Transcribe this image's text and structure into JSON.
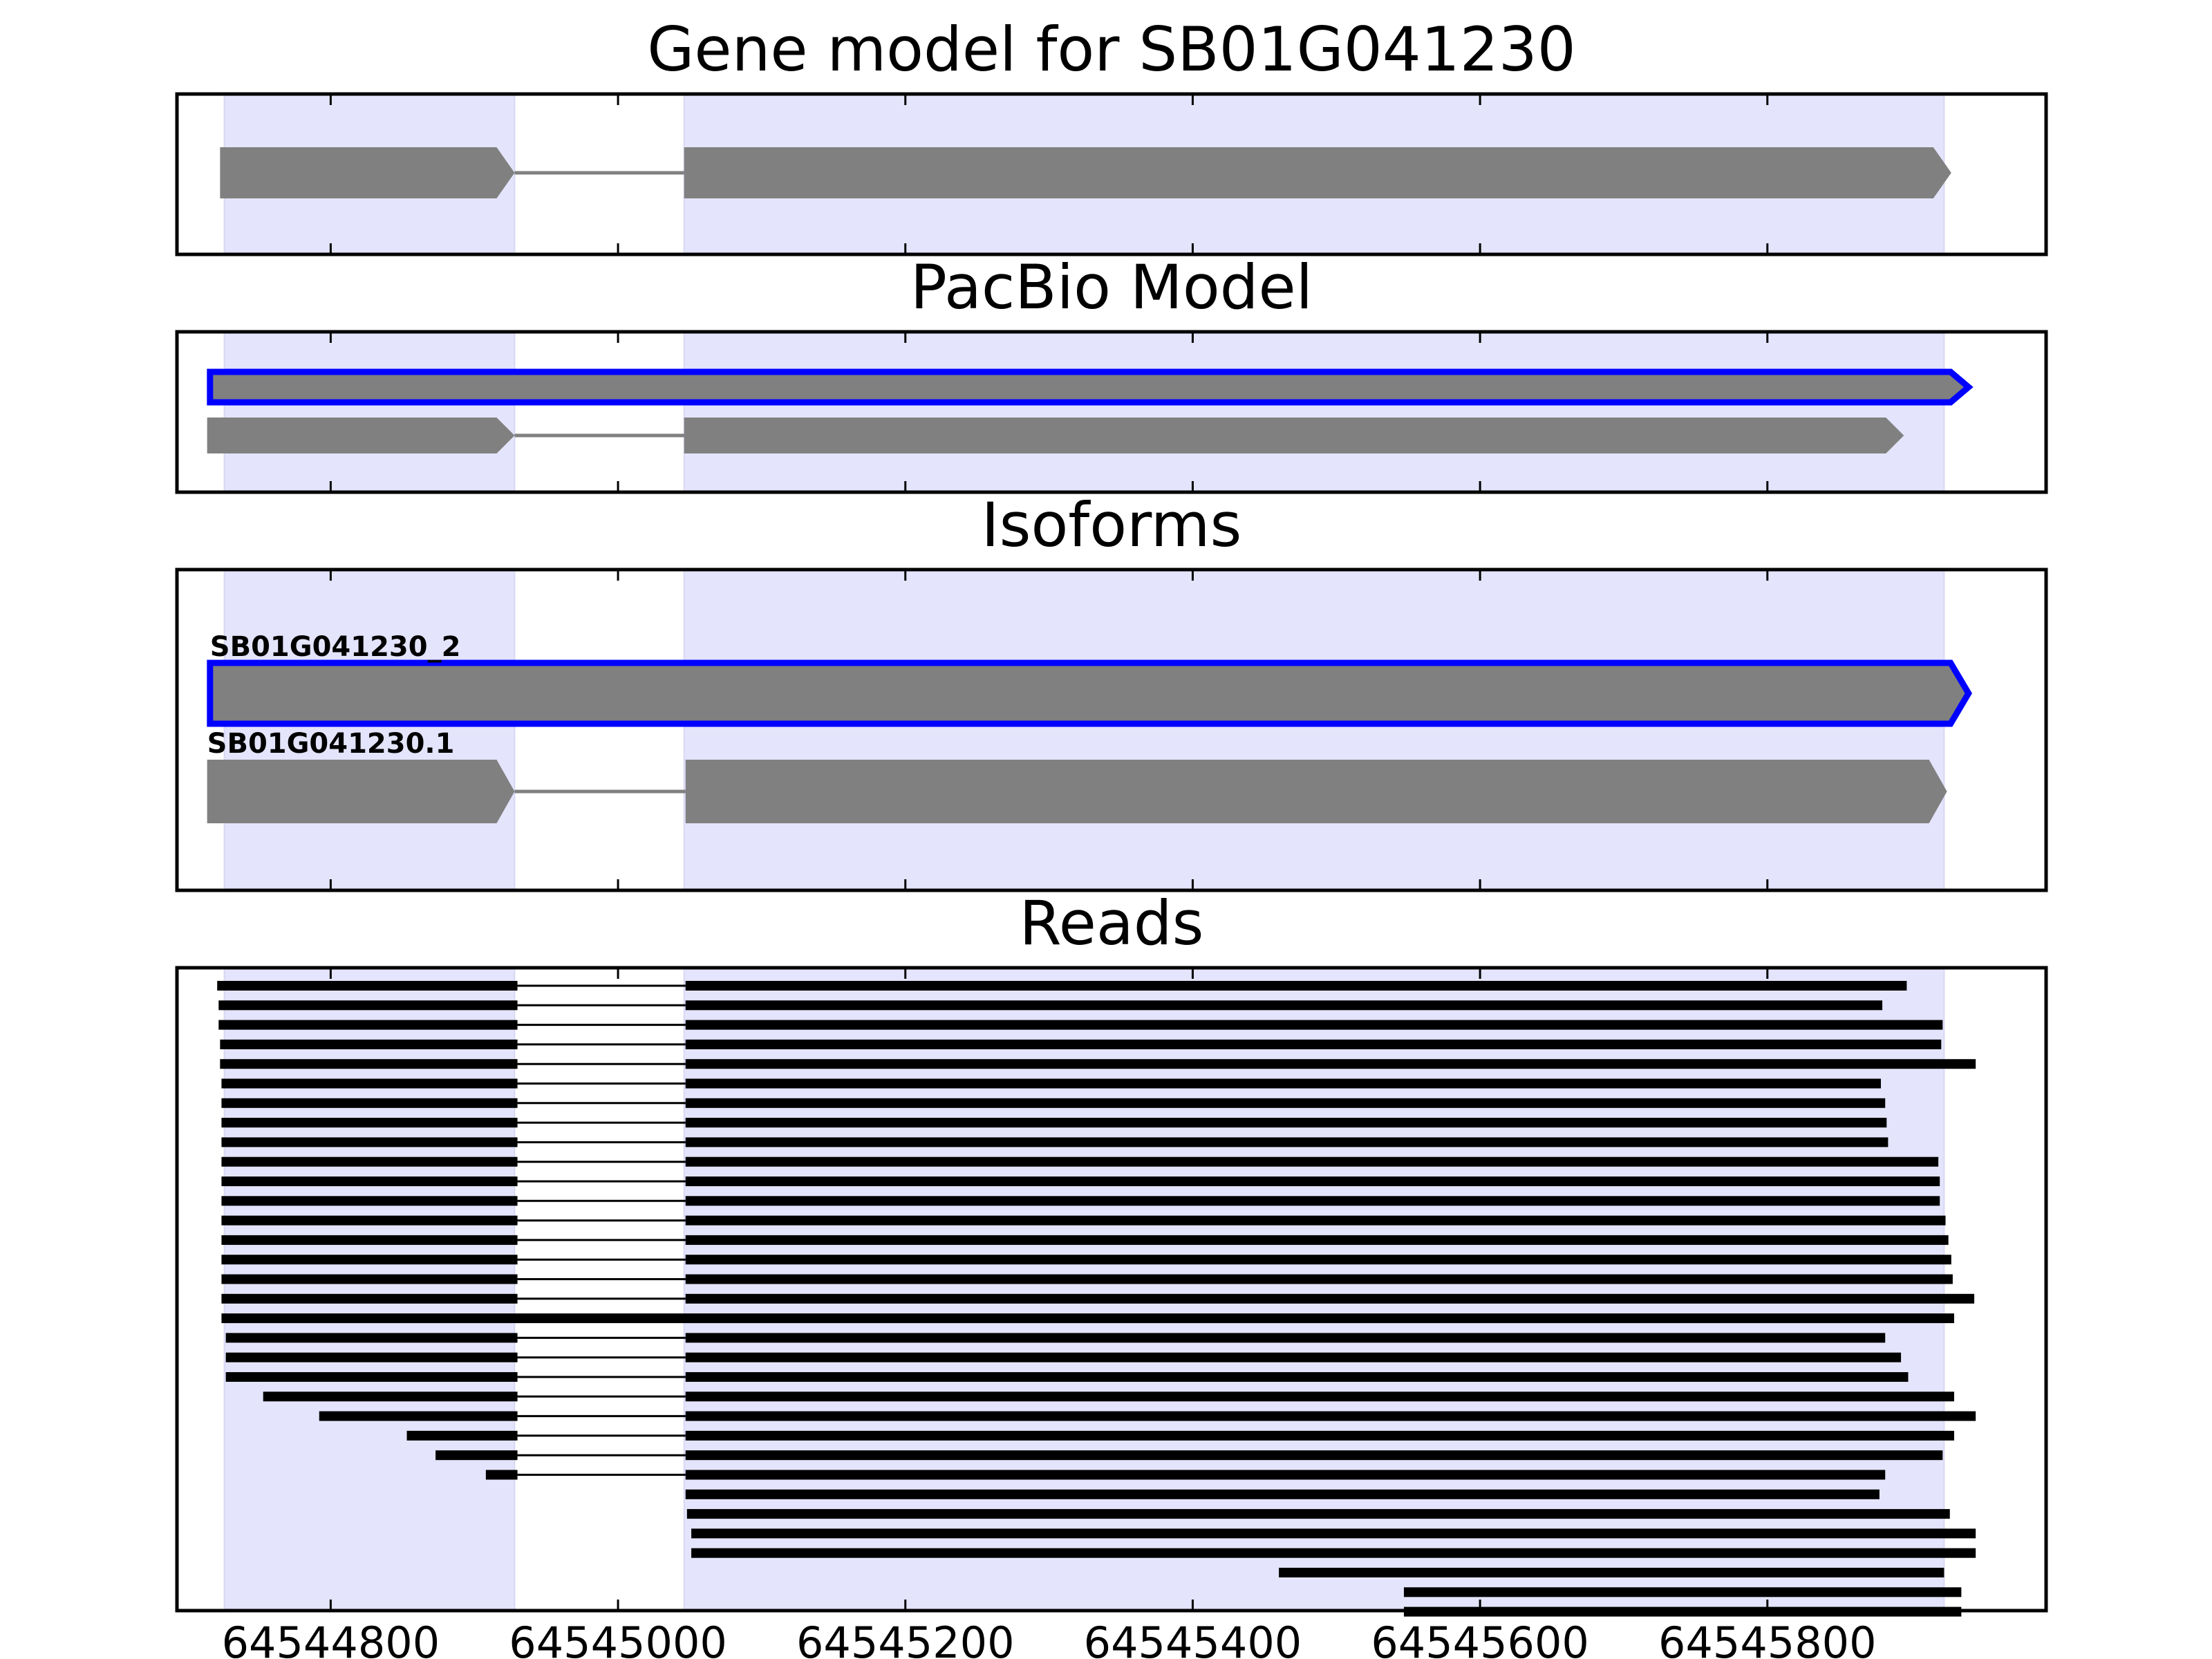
{
  "chart_data": {
    "type": "gene-model-tracks",
    "x_axis": {
      "xlim": [
        64544693,
        64545994
      ],
      "ticks": [
        64544800,
        64545000,
        64545200,
        64545400,
        64545600,
        64545800
      ],
      "tick_labels": [
        "64544800",
        "64545000",
        "64545200",
        "64545400",
        "64545600",
        "64545800"
      ]
    },
    "highlight_regions": [
      [
        64544726,
        64544928
      ],
      [
        64545046,
        64545923
      ]
    ],
    "colors": {
      "highlight": "#e4e4fc",
      "feature_gray": "#808080",
      "selected_outline": "#0000ff",
      "read": "#000000",
      "intron_line": "#808080"
    },
    "panels": [
      {
        "title": "Gene model for SB01G041230",
        "type": "gene",
        "features": [
          {
            "label": "",
            "selected": false,
            "exons": [
              [
                64544723,
                64544928
              ],
              [
                64545046,
                64545928
              ]
            ]
          }
        ]
      },
      {
        "title": "PacBio Model",
        "type": "gene",
        "features": [
          {
            "label": "",
            "selected": true,
            "exons": [
              [
                64544716,
                64545940
              ]
            ]
          },
          {
            "label": "",
            "selected": false,
            "exons": [
              [
                64544714,
                64544928
              ],
              [
                64545046,
                64545895
              ]
            ]
          }
        ]
      },
      {
        "title": "Isoforms",
        "type": "gene",
        "features": [
          {
            "label": "SB01G041230_2",
            "selected": true,
            "exons": [
              [
                64544716,
                64545940
              ]
            ]
          },
          {
            "label": "SB01G041230.1",
            "selected": false,
            "exons": [
              [
                64544714,
                64544928
              ],
              [
                64545047,
                64545925
              ]
            ]
          }
        ]
      },
      {
        "title": "Reads",
        "type": "reads",
        "reads": [
          [
            [
              64544721,
              64544930
            ],
            [
              64545047,
              64545897
            ]
          ],
          [
            [
              64544722,
              64544930
            ],
            [
              64545047,
              64545880
            ]
          ],
          [
            [
              64544722,
              64544930
            ],
            [
              64545047,
              64545922
            ]
          ],
          [
            [
              64544723,
              64544930
            ],
            [
              64545047,
              64545921
            ]
          ],
          [
            [
              64544723,
              64544930
            ],
            [
              64545047,
              64545945
            ]
          ],
          [
            [
              64544724,
              64544930
            ],
            [
              64545047,
              64545879
            ]
          ],
          [
            [
              64544724,
              64544930
            ],
            [
              64545047,
              64545882
            ]
          ],
          [
            [
              64544724,
              64544930
            ],
            [
              64545047,
              64545883
            ]
          ],
          [
            [
              64544724,
              64544930
            ],
            [
              64545047,
              64545884
            ]
          ],
          [
            [
              64544724,
              64544930
            ],
            [
              64545047,
              64545919
            ]
          ],
          [
            [
              64544724,
              64544930
            ],
            [
              64545047,
              64545920
            ]
          ],
          [
            [
              64544724,
              64544930
            ],
            [
              64545047,
              64545920
            ]
          ],
          [
            [
              64544724,
              64544930
            ],
            [
              64545047,
              64545924
            ]
          ],
          [
            [
              64544724,
              64544930
            ],
            [
              64545047,
              64545926
            ]
          ],
          [
            [
              64544724,
              64544930
            ],
            [
              64545047,
              64545928
            ]
          ],
          [
            [
              64544724,
              64544930
            ],
            [
              64545047,
              64545929
            ]
          ],
          [
            [
              64544724,
              64544930
            ],
            [
              64545047,
              64545944
            ]
          ],
          [
            [
              64544724,
              64545930
            ]
          ],
          [
            [
              64544727,
              64544930
            ],
            [
              64545047,
              64545882
            ]
          ],
          [
            [
              64544727,
              64544930
            ],
            [
              64545047,
              64545893
            ]
          ],
          [
            [
              64544727,
              64544930
            ],
            [
              64545047,
              64545898
            ]
          ],
          [
            [
              64544753,
              64544930
            ],
            [
              64545047,
              64545930
            ]
          ],
          [
            [
              64544792,
              64544930
            ],
            [
              64545047,
              64545945
            ]
          ],
          [
            [
              64544853,
              64544930
            ],
            [
              64545047,
              64545930
            ]
          ],
          [
            [
              64544873,
              64544930
            ],
            [
              64545047,
              64545922
            ]
          ],
          [
            [
              64544908,
              64544930
            ],
            [
              64545047,
              64545882
            ]
          ],
          [
            [
              64545047,
              64545878
            ]
          ],
          [
            [
              64545048,
              64545927
            ]
          ],
          [
            [
              64545051,
              64545945
            ]
          ],
          [
            [
              64545051,
              64545945
            ]
          ],
          [
            [
              64545460,
              64545923
            ]
          ],
          [
            [
              64545547,
              64545935
            ]
          ],
          [
            [
              64545547,
              64545935
            ]
          ]
        ]
      }
    ]
  }
}
